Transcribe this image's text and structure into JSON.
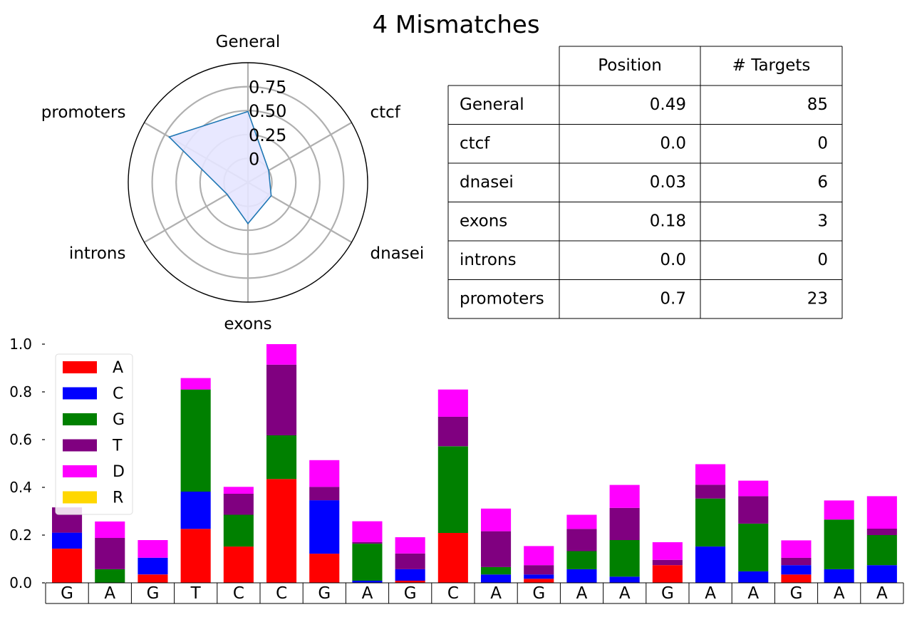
{
  "title": "4 Mismatches",
  "colors": {
    "A": "#ff0000",
    "C": "#0000ff",
    "G": "#008000",
    "T": "#800080",
    "D": "#ff00ff",
    "R": "#ffd700",
    "radar_line": "#1f77b4",
    "radar_fill": "#e5e5ff",
    "radar_grid": "#b0b0b0"
  },
  "chart_data": [
    {
      "type": "radar",
      "axes": [
        "General",
        "ctcf",
        "dnasei",
        "exons",
        "introns",
        "promoters"
      ],
      "values": [
        0.49,
        0.0,
        0.03,
        0.18,
        0.0,
        0.7
      ],
      "rlim": [
        -0.25,
        1.0
      ],
      "rticks": [
        0,
        0.25,
        0.5,
        0.75
      ],
      "rtick_labels": [
        "0",
        "0.25",
        "0.50",
        "0.75"
      ]
    },
    {
      "type": "table",
      "columns": [
        "Position",
        "# Targets"
      ],
      "rows": [
        {
          "label": "General",
          "position": "0.49",
          "targets": "85"
        },
        {
          "label": "ctcf",
          "position": "0.0",
          "targets": "0"
        },
        {
          "label": "dnasei",
          "position": "0.03",
          "targets": "6"
        },
        {
          "label": "exons",
          "position": "0.18",
          "targets": "3"
        },
        {
          "label": "introns",
          "position": "0.0",
          "targets": "0"
        },
        {
          "label": "promoters",
          "position": "0.7",
          "targets": "23"
        }
      ]
    },
    {
      "type": "bar",
      "stacked": true,
      "categories": [
        "G",
        "A",
        "G",
        "T",
        "C",
        "C",
        "G",
        "A",
        "G",
        "C",
        "A",
        "G",
        "A",
        "A",
        "G",
        "A",
        "A",
        "G",
        "A",
        "A"
      ],
      "ylim": [
        0,
        1.0
      ],
      "yticks": [
        "0.0",
        "0.2",
        "0.4",
        "0.6",
        "0.8",
        "1.0"
      ],
      "legend_position": "top-left",
      "series": [
        {
          "name": "A",
          "values": [
            0.143,
            0,
            0.035,
            0.226,
            0.152,
            0.435,
            0.122,
            0,
            0.009,
            0.209,
            0,
            0.017,
            0,
            0,
            0.074,
            0,
            0,
            0.035,
            0,
            0
          ]
        },
        {
          "name": "C",
          "values": [
            0.067,
            0,
            0.07,
            0.156,
            0,
            0,
            0.224,
            0.009,
            0.048,
            0,
            0.035,
            0.018,
            0.057,
            0.026,
            0,
            0.152,
            0.048,
            0.039,
            0.057,
            0.074
          ]
        },
        {
          "name": "G",
          "values": [
            0,
            0.057,
            0,
            0.428,
            0.133,
            0.183,
            0,
            0.155,
            0,
            0.363,
            0.031,
            0,
            0.076,
            0.153,
            0,
            0.201,
            0.2,
            0,
            0.208,
            0.126
          ]
        },
        {
          "name": "T",
          "values": [
            0.106,
            0.131,
            0,
            0,
            0.088,
            0.296,
            0.056,
            0.007,
            0.066,
            0.124,
            0.15,
            0.039,
            0.093,
            0.135,
            0.022,
            0.058,
            0.115,
            0.031,
            0,
            0.027
          ]
        },
        {
          "name": "D",
          "values": [
            0,
            0.069,
            0.074,
            0.048,
            0.029,
            0.086,
            0.112,
            0.087,
            0.068,
            0.114,
            0.095,
            0.08,
            0.059,
            0.096,
            0.074,
            0.086,
            0.065,
            0.073,
            0.08,
            0.136
          ]
        },
        {
          "name": "R",
          "values": [
            0,
            0,
            0,
            0,
            0,
            0,
            0,
            0,
            0,
            0,
            0,
            0,
            0,
            0,
            0,
            0,
            0,
            0,
            0,
            0
          ]
        }
      ]
    }
  ]
}
